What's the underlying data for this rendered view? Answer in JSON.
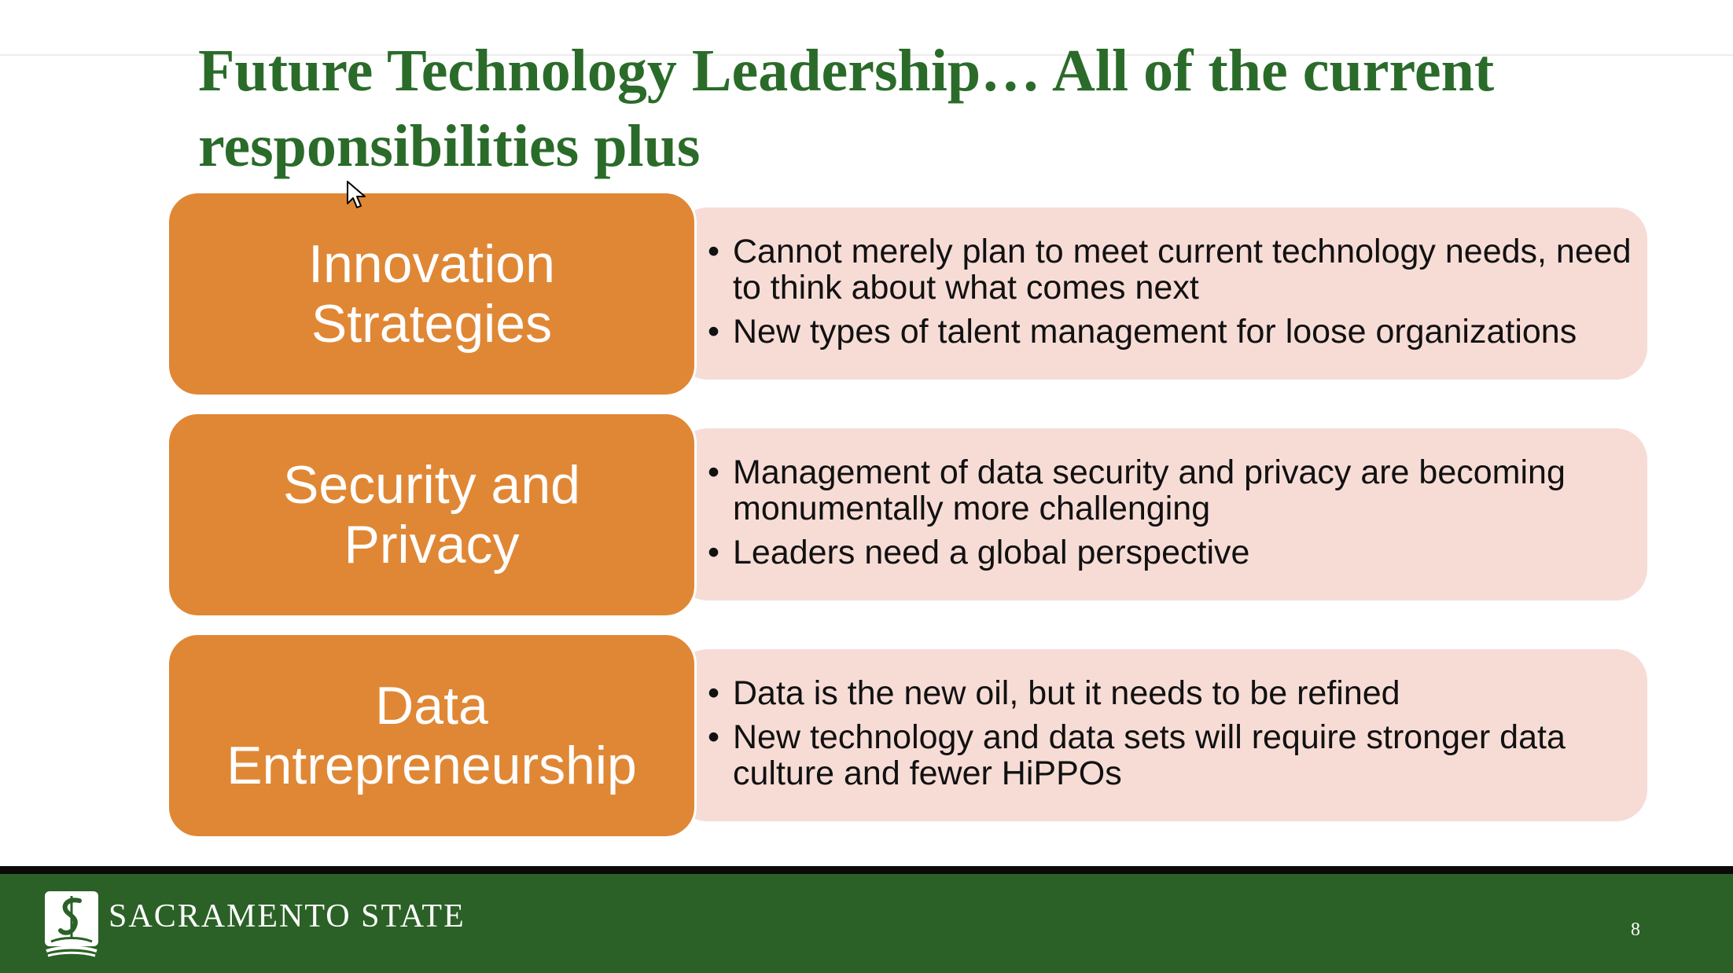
{
  "slide": {
    "title": "Future Technology Leadership… All of the current responsibilities plus",
    "rows": [
      {
        "label": "Innovation\nStrategies",
        "bullets": [
          "Cannot merely plan to meet current technology needs, need to think about what comes next",
          "New types of talent management for loose organizations"
        ]
      },
      {
        "label": "Security and\nPrivacy",
        "bullets": [
          "Management of data security and privacy are becoming monumentally more challenging",
          "Leaders need a global perspective"
        ]
      },
      {
        "label": "Data\nEntrepreneurship",
        "bullets": [
          "Data is the new oil, but it needs to be refined",
          "New technology and data sets will require stronger data culture and fewer HiPPOs"
        ]
      }
    ],
    "bullet_symbol": "•"
  },
  "footer": {
    "brand": "SACRAMENTO STATE",
    "page_number": "8",
    "logo_icon": "sacramento-state-logo-icon"
  },
  "colors": {
    "title_green": "#2a6b2a",
    "label_orange": "#e08735",
    "desc_pink": "#f7dcd6",
    "footer_green": "#2b6126"
  },
  "cursor_icon": "mouse-pointer-icon"
}
